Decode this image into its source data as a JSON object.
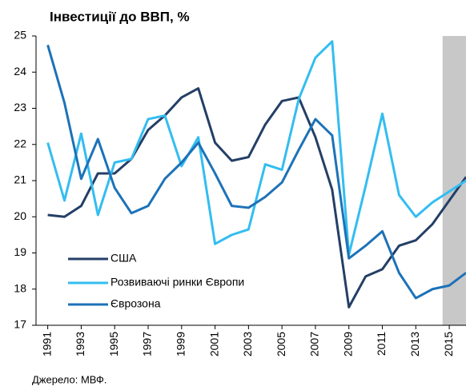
{
  "chart_data": {
    "type": "line",
    "title": "Інвестиції до ВВП, %",
    "source": "Джерело: МВФ.",
    "x": [
      1991,
      1992,
      1993,
      1994,
      1995,
      1996,
      1997,
      1998,
      1999,
      2000,
      2001,
      2002,
      2003,
      2004,
      2005,
      2006,
      2007,
      2008,
      2009,
      2010,
      2011,
      2012,
      2013,
      2014,
      2015,
      2016
    ],
    "series": [
      {
        "name": "США",
        "color": "#243f66",
        "values": [
          20.05,
          20.0,
          20.3,
          21.2,
          21.2,
          21.6,
          22.4,
          22.8,
          23.3,
          23.55,
          22.05,
          21.55,
          21.65,
          22.55,
          23.2,
          23.3,
          22.2,
          20.75,
          17.5,
          18.35,
          18.55,
          19.2,
          19.35,
          19.8,
          20.45,
          21.1
        ]
      },
      {
        "name": "Розвиваючі ринки Європи",
        "color": "#33bdf0",
        "values": [
          22.05,
          20.45,
          22.3,
          20.05,
          21.5,
          21.6,
          22.7,
          22.8,
          21.4,
          22.2,
          19.25,
          19.5,
          19.65,
          21.45,
          21.3,
          23.25,
          24.4,
          24.85,
          18.95,
          20.85,
          22.85,
          20.6,
          20.0,
          20.4,
          20.7,
          21.0
        ]
      },
      {
        "name": "Єврозона",
        "color": "#1c72b8",
        "values": [
          24.75,
          23.15,
          21.05,
          22.15,
          20.8,
          20.1,
          20.3,
          21.05,
          21.5,
          22.05,
          21.2,
          20.3,
          20.25,
          20.55,
          20.95,
          21.85,
          22.7,
          22.25,
          18.85,
          19.2,
          19.6,
          18.45,
          17.75,
          18.0,
          18.1,
          18.45
        ]
      }
    ],
    "xlim": [
      1990.3,
      2016
    ],
    "xticks": [
      1991,
      1993,
      1995,
      1997,
      1999,
      2001,
      2003,
      2005,
      2007,
      2009,
      2011,
      2013,
      2015
    ],
    "ylim": [
      17,
      25
    ],
    "yticks": [
      17,
      18,
      19,
      20,
      21,
      22,
      23,
      24,
      25
    ],
    "shade_from": 2014.6,
    "shade_color": "#c8c8c8",
    "grid": false
  }
}
